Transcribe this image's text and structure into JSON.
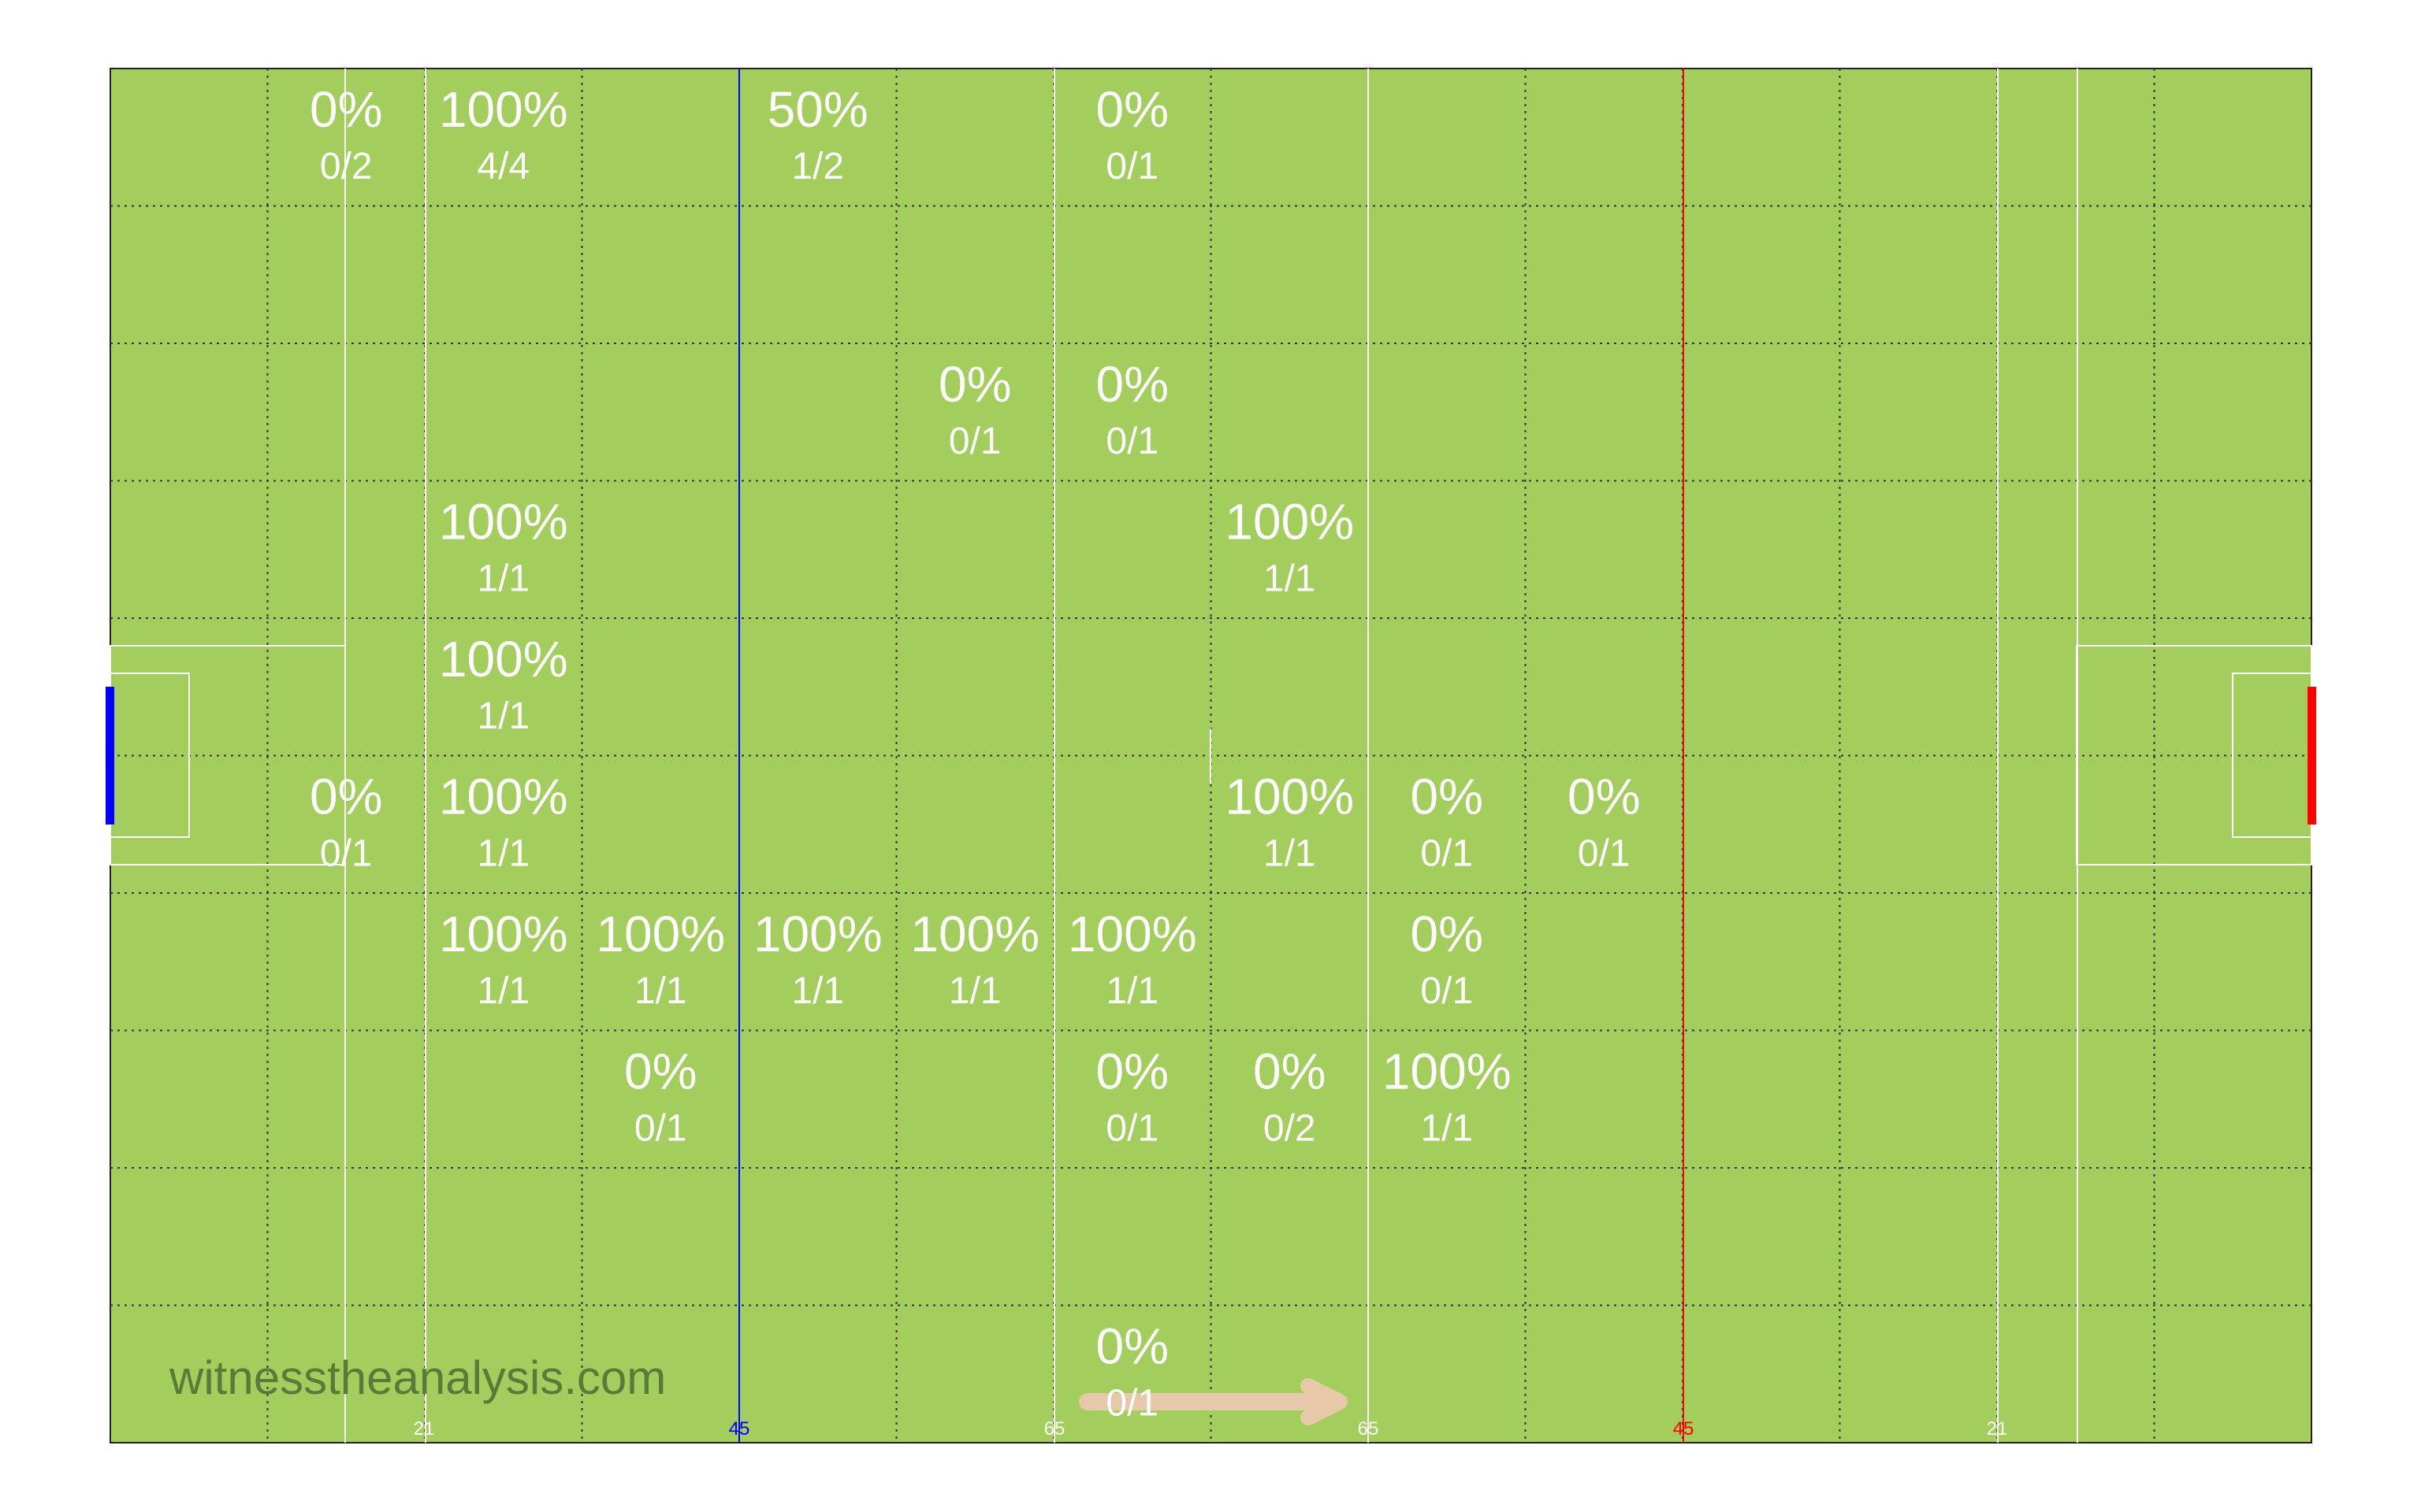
{
  "chart_data": {
    "type": "heatmap",
    "title": "",
    "grid": true,
    "grid_cols": 14,
    "grid_rows": 10,
    "pitch_color": "#a3cd5d",
    "text_color": "#ffffff",
    "left_goal_color": "#0000ff",
    "right_goal_color": "#ff0000",
    "left_45_color": "#0000ff",
    "right_45_color": "#ff0000",
    "arrow_color": "#e6c9a8",
    "watermark": "witnesstheanalysis.com",
    "line_ticks": [
      {
        "label": "21",
        "color": "#ffffff"
      },
      {
        "label": "45",
        "color": "#0000ff"
      },
      {
        "label": "65",
        "color": "#ffffff"
      },
      {
        "label": "65",
        "color": "#ffffff"
      },
      {
        "label": "45",
        "color": "#ff0000"
      },
      {
        "label": "21",
        "color": "#ffffff"
      }
    ],
    "cells": [
      {
        "col": 1,
        "row": 0,
        "pct": "0%",
        "frac": "0/2"
      },
      {
        "col": 2,
        "row": 0,
        "pct": "100%",
        "frac": "4/4"
      },
      {
        "col": 4,
        "row": 0,
        "pct": "50%",
        "frac": "1/2"
      },
      {
        "col": 6,
        "row": 0,
        "pct": "0%",
        "frac": "0/1"
      },
      {
        "col": 5,
        "row": 2,
        "pct": "0%",
        "frac": "0/1"
      },
      {
        "col": 6,
        "row": 2,
        "pct": "0%",
        "frac": "0/1"
      },
      {
        "col": 2,
        "row": 3,
        "pct": "100%",
        "frac": "1/1"
      },
      {
        "col": 7,
        "row": 3,
        "pct": "100%",
        "frac": "1/1"
      },
      {
        "col": 2,
        "row": 4,
        "pct": "100%",
        "frac": "1/1"
      },
      {
        "col": 1,
        "row": 5,
        "pct": "0%",
        "frac": "0/1"
      },
      {
        "col": 2,
        "row": 5,
        "pct": "100%",
        "frac": "1/1"
      },
      {
        "col": 7,
        "row": 5,
        "pct": "100%",
        "frac": "1/1"
      },
      {
        "col": 8,
        "row": 5,
        "pct": "0%",
        "frac": "0/1"
      },
      {
        "col": 9,
        "row": 5,
        "pct": "0%",
        "frac": "0/1"
      },
      {
        "col": 2,
        "row": 6,
        "pct": "100%",
        "frac": "1/1"
      },
      {
        "col": 3,
        "row": 6,
        "pct": "100%",
        "frac": "1/1"
      },
      {
        "col": 4,
        "row": 6,
        "pct": "100%",
        "frac": "1/1"
      },
      {
        "col": 5,
        "row": 6,
        "pct": "100%",
        "frac": "1/1"
      },
      {
        "col": 6,
        "row": 6,
        "pct": "100%",
        "frac": "1/1"
      },
      {
        "col": 8,
        "row": 6,
        "pct": "0%",
        "frac": "0/1"
      },
      {
        "col": 3,
        "row": 7,
        "pct": "0%",
        "frac": "0/1"
      },
      {
        "col": 6,
        "row": 7,
        "pct": "0%",
        "frac": "0/1"
      },
      {
        "col": 7,
        "row": 7,
        "pct": "0%",
        "frac": "0/2"
      },
      {
        "col": 8,
        "row": 7,
        "pct": "100%",
        "frac": "1/1"
      },
      {
        "col": 6,
        "row": 9,
        "pct": "0%",
        "frac": "0/1"
      }
    ]
  }
}
